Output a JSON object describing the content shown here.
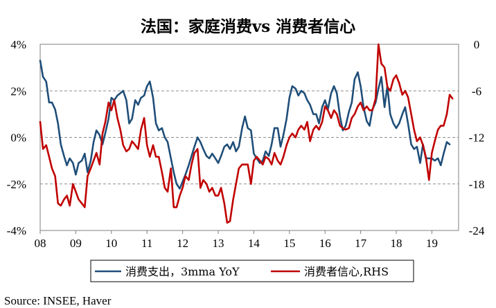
{
  "chart_data": {
    "type": "line",
    "title": "法国：家庭消费vs 消费者信心",
    "source": "Source: INSEE, Haver",
    "x_range": [
      2008.0,
      2019.75
    ],
    "x_ticks": [
      {
        "value": 2008,
        "label": "08"
      },
      {
        "value": 2009,
        "label": "09"
      },
      {
        "value": 2010,
        "label": "10"
      },
      {
        "value": 2011,
        "label": "11"
      },
      {
        "value": 2012,
        "label": "12"
      },
      {
        "value": 2013,
        "label": "13"
      },
      {
        "value": 2014,
        "label": "14"
      },
      {
        "value": 2015,
        "label": "15"
      },
      {
        "value": 2016,
        "label": "16"
      },
      {
        "value": 2017,
        "label": "17"
      },
      {
        "value": 2018,
        "label": "18"
      },
      {
        "value": 2019,
        "label": "19"
      }
    ],
    "y_left": {
      "range": [
        -4,
        4
      ],
      "ticks": [
        4,
        2,
        0,
        -2,
        -4
      ],
      "tick_labels": [
        "4%",
        "2%",
        "0%",
        "-2%",
        "-4%"
      ]
    },
    "y_right": {
      "range": [
        -24,
        0
      ],
      "ticks": [
        0,
        -6,
        -12,
        -18,
        -24
      ],
      "tick_labels": [
        "0",
        "-6",
        "-12",
        "-18",
        "-24"
      ]
    },
    "grid": "horizontal dashed",
    "legend_position": "bottom",
    "series": [
      {
        "name": "消费支出，3mma YoY",
        "axis": "left",
        "color": "#1f4e79",
        "points": [
          [
            2008.0,
            3.3
          ],
          [
            2008.08,
            2.6
          ],
          [
            2008.17,
            2.4
          ],
          [
            2008.25,
            1.5
          ],
          [
            2008.33,
            1.5
          ],
          [
            2008.42,
            1.2
          ],
          [
            2008.5,
            0.6
          ],
          [
            2008.58,
            -0.3
          ],
          [
            2008.67,
            -0.8
          ],
          [
            2008.75,
            -1.2
          ],
          [
            2008.83,
            -0.9
          ],
          [
            2008.92,
            -1.1
          ],
          [
            2009.0,
            -1.6
          ],
          [
            2009.08,
            -1.1
          ],
          [
            2009.17,
            -1.0
          ],
          [
            2009.25,
            -0.7
          ],
          [
            2009.33,
            -1.5
          ],
          [
            2009.42,
            -1.0
          ],
          [
            2009.5,
            -0.2
          ],
          [
            2009.58,
            0.3
          ],
          [
            2009.67,
            0.1
          ],
          [
            2009.75,
            -0.3
          ],
          [
            2009.83,
            0.2
          ],
          [
            2009.92,
            0.8
          ],
          [
            2010.0,
            1.7
          ],
          [
            2010.08,
            1.6
          ],
          [
            2010.17,
            1.8
          ],
          [
            2010.25,
            1.9
          ],
          [
            2010.33,
            2.0
          ],
          [
            2010.42,
            1.6
          ],
          [
            2010.5,
            0.6
          ],
          [
            2010.58,
            0.8
          ],
          [
            2010.67,
            1.6
          ],
          [
            2010.75,
            1.4
          ],
          [
            2010.83,
            1.7
          ],
          [
            2010.92,
            1.8
          ],
          [
            2011.0,
            2.2
          ],
          [
            2011.08,
            2.4
          ],
          [
            2011.17,
            1.7
          ],
          [
            2011.25,
            0.6
          ],
          [
            2011.33,
            0.3
          ],
          [
            2011.42,
            0.4
          ],
          [
            2011.5,
            0.0
          ],
          [
            2011.58,
            -0.2
          ],
          [
            2011.67,
            -0.9
          ],
          [
            2011.75,
            -1.5
          ],
          [
            2011.83,
            -2.0
          ],
          [
            2011.92,
            -2.2
          ],
          [
            2012.0,
            -1.9
          ],
          [
            2012.08,
            -1.6
          ],
          [
            2012.17,
            -1.2
          ],
          [
            2012.25,
            -0.8
          ],
          [
            2012.33,
            -0.4
          ],
          [
            2012.42,
            0.0
          ],
          [
            2012.5,
            -0.2
          ],
          [
            2012.58,
            -0.5
          ],
          [
            2012.67,
            -0.8
          ],
          [
            2012.75,
            -0.9
          ],
          [
            2012.83,
            -0.7
          ],
          [
            2012.92,
            -0.9
          ],
          [
            2013.0,
            -1.1
          ],
          [
            2013.08,
            -0.8
          ],
          [
            2013.17,
            -0.4
          ],
          [
            2013.25,
            -0.3
          ],
          [
            2013.33,
            -0.5
          ],
          [
            2013.42,
            -0.2
          ],
          [
            2013.5,
            -0.6
          ],
          [
            2013.58,
            -0.4
          ],
          [
            2013.67,
            0.4
          ],
          [
            2013.75,
            0.9
          ],
          [
            2013.83,
            0.4
          ],
          [
            2013.92,
            0.3
          ],
          [
            2014.0,
            -0.7
          ],
          [
            2014.08,
            -0.9
          ],
          [
            2014.17,
            -1.1
          ],
          [
            2014.25,
            -1.0
          ],
          [
            2014.33,
            -0.6
          ],
          [
            2014.42,
            -0.8
          ],
          [
            2014.5,
            -0.3
          ],
          [
            2014.58,
            0.4
          ],
          [
            2014.67,
            0.4
          ],
          [
            2014.75,
            -0.4
          ],
          [
            2014.83,
            0.1
          ],
          [
            2014.92,
            0.8
          ],
          [
            2015.0,
            1.7
          ],
          [
            2015.08,
            2.2
          ],
          [
            2015.17,
            2.1
          ],
          [
            2015.25,
            1.8
          ],
          [
            2015.33,
            2.0
          ],
          [
            2015.42,
            1.9
          ],
          [
            2015.5,
            1.6
          ],
          [
            2015.58,
            1.4
          ],
          [
            2015.67,
            1.0
          ],
          [
            2015.75,
            1.0
          ],
          [
            2015.83,
            0.6
          ],
          [
            2015.92,
            1.3
          ],
          [
            2016.0,
            1.6
          ],
          [
            2016.08,
            1.2
          ],
          [
            2016.17,
            1.9
          ],
          [
            2016.25,
            2.2
          ],
          [
            2016.33,
            1.9
          ],
          [
            2016.42,
            0.9
          ],
          [
            2016.5,
            0.3
          ],
          [
            2016.58,
            0.5
          ],
          [
            2016.67,
            1.1
          ],
          [
            2016.75,
            1.5
          ],
          [
            2016.83,
            2.5
          ],
          [
            2016.92,
            2.8
          ],
          [
            2017.0,
            2.2
          ],
          [
            2017.08,
            1.3
          ],
          [
            2017.17,
            0.7
          ],
          [
            2017.25,
            0.5
          ],
          [
            2017.33,
            1.2
          ],
          [
            2017.42,
            1.5
          ],
          [
            2017.5,
            2.1
          ],
          [
            2017.58,
            2.6
          ],
          [
            2017.67,
            1.3
          ],
          [
            2017.75,
            2.2
          ],
          [
            2017.83,
            1.0
          ],
          [
            2017.92,
            0.6
          ],
          [
            2018.0,
            0.4
          ],
          [
            2018.08,
            0.6
          ],
          [
            2018.17,
            1.0
          ],
          [
            2018.25,
            1.3
          ],
          [
            2018.33,
            0.6
          ],
          [
            2018.42,
            -0.3
          ],
          [
            2018.5,
            -0.5
          ],
          [
            2018.58,
            -0.4
          ],
          [
            2018.67,
            -1.1
          ],
          [
            2018.75,
            -0.3
          ],
          [
            2018.83,
            -0.9
          ],
          [
            2018.92,
            -0.9
          ],
          [
            2019.0,
            -0.9
          ],
          [
            2019.08,
            -1.0
          ],
          [
            2019.17,
            -0.9
          ],
          [
            2019.25,
            -1.2
          ],
          [
            2019.33,
            -0.7
          ],
          [
            2019.42,
            -0.2
          ],
          [
            2019.5,
            -0.3
          ]
        ]
      },
      {
        "name": "消费者信心,RHS",
        "axis": "right",
        "color": "#c00000",
        "points": [
          [
            2008.0,
            -10.0
          ],
          [
            2008.08,
            -13.5
          ],
          [
            2008.17,
            -13.0
          ],
          [
            2008.25,
            -14.5
          ],
          [
            2008.33,
            -16.0
          ],
          [
            2008.42,
            -17.0
          ],
          [
            2008.5,
            -20.5
          ],
          [
            2008.58,
            -20.8
          ],
          [
            2008.67,
            -20.0
          ],
          [
            2008.75,
            -19.5
          ],
          [
            2008.83,
            -20.8
          ],
          [
            2008.92,
            -18.0
          ],
          [
            2009.0,
            -19.0
          ],
          [
            2009.08,
            -20.0
          ],
          [
            2009.17,
            -20.5
          ],
          [
            2009.25,
            -21.0
          ],
          [
            2009.33,
            -17.0
          ],
          [
            2009.42,
            -16.0
          ],
          [
            2009.5,
            -15.0
          ],
          [
            2009.58,
            -14.0
          ],
          [
            2009.67,
            -15.5
          ],
          [
            2009.75,
            -11.5
          ],
          [
            2009.83,
            -10.0
          ],
          [
            2009.92,
            -7.5
          ],
          [
            2010.0,
            -8.5
          ],
          [
            2010.08,
            -7.2
          ],
          [
            2010.17,
            -9.5
          ],
          [
            2010.25,
            -11.0
          ],
          [
            2010.33,
            -13.0
          ],
          [
            2010.42,
            -13.8
          ],
          [
            2010.5,
            -13.5
          ],
          [
            2010.58,
            -12.5
          ],
          [
            2010.67,
            -13.0
          ],
          [
            2010.75,
            -13.5
          ],
          [
            2010.83,
            -11.0
          ],
          [
            2010.92,
            -9.5
          ],
          [
            2011.0,
            -13.0
          ],
          [
            2011.08,
            -14.5
          ],
          [
            2011.17,
            -13.0
          ],
          [
            2011.25,
            -14.5
          ],
          [
            2011.33,
            -14.5
          ],
          [
            2011.42,
            -16.5
          ],
          [
            2011.5,
            -18.5
          ],
          [
            2011.58,
            -19.0
          ],
          [
            2011.67,
            -16.0
          ],
          [
            2011.75,
            -21.0
          ],
          [
            2011.83,
            -21.0
          ],
          [
            2011.92,
            -19.5
          ],
          [
            2012.0,
            -18.5
          ],
          [
            2012.08,
            -17.0
          ],
          [
            2012.17,
            -17.5
          ],
          [
            2012.25,
            -15.5
          ],
          [
            2012.33,
            -14.0
          ],
          [
            2012.42,
            -13.5
          ],
          [
            2012.5,
            -18.5
          ],
          [
            2012.58,
            -17.5
          ],
          [
            2012.67,
            -18.0
          ],
          [
            2012.75,
            -19.0
          ],
          [
            2012.83,
            -18.5
          ],
          [
            2012.92,
            -19.5
          ],
          [
            2013.0,
            -19.5
          ],
          [
            2013.08,
            -18.5
          ],
          [
            2013.17,
            -20.5
          ],
          [
            2013.25,
            -23.0
          ],
          [
            2013.33,
            -22.8
          ],
          [
            2013.42,
            -20.0
          ],
          [
            2013.5,
            -18.0
          ],
          [
            2013.58,
            -16.0
          ],
          [
            2013.67,
            -15.5
          ],
          [
            2013.75,
            -15.5
          ],
          [
            2013.83,
            -15.5
          ],
          [
            2013.92,
            -18.0
          ],
          [
            2014.0,
            -15.0
          ],
          [
            2014.08,
            -14.5
          ],
          [
            2014.17,
            -15.0
          ],
          [
            2014.25,
            -15.5
          ],
          [
            2014.33,
            -14.5
          ],
          [
            2014.42,
            -14.8
          ],
          [
            2014.5,
            -15.5
          ],
          [
            2014.58,
            -14.0
          ],
          [
            2014.67,
            -15.0
          ],
          [
            2014.75,
            -15.5
          ],
          [
            2014.83,
            -14.5
          ],
          [
            2014.92,
            -13.0
          ],
          [
            2015.0,
            -12.0
          ],
          [
            2015.08,
            -11.5
          ],
          [
            2015.17,
            -12.0
          ],
          [
            2015.25,
            -11.0
          ],
          [
            2015.33,
            -10.5
          ],
          [
            2015.42,
            -11.0
          ],
          [
            2015.5,
            -10.0
          ],
          [
            2015.58,
            -12.5
          ],
          [
            2015.67,
            -11.0
          ],
          [
            2015.75,
            -10.5
          ],
          [
            2015.83,
            -11.0
          ],
          [
            2015.92,
            -10.0
          ],
          [
            2016.0,
            -8.0
          ],
          [
            2016.08,
            -8.5
          ],
          [
            2016.17,
            -9.5
          ],
          [
            2016.25,
            -8.5
          ],
          [
            2016.33,
            -9.0
          ],
          [
            2016.42,
            -10.5
          ],
          [
            2016.5,
            -10.8
          ],
          [
            2016.58,
            -11.0
          ],
          [
            2016.67,
            -10.8
          ],
          [
            2016.75,
            -9.5
          ],
          [
            2016.83,
            -9.0
          ],
          [
            2016.92,
            -8.0
          ],
          [
            2017.0,
            -7.5
          ],
          [
            2017.08,
            -8.5
          ],
          [
            2017.17,
            -8.0
          ],
          [
            2017.25,
            -8.5
          ],
          [
            2017.33,
            -8.5
          ],
          [
            2017.42,
            -7.0
          ],
          [
            2017.5,
            0.0
          ],
          [
            2017.58,
            -2.5
          ],
          [
            2017.67,
            -3.0
          ],
          [
            2017.75,
            -5.5
          ],
          [
            2017.83,
            -6.0
          ],
          [
            2017.92,
            -4.5
          ],
          [
            2018.0,
            -4.0
          ],
          [
            2018.08,
            -5.0
          ],
          [
            2018.17,
            -6.5
          ],
          [
            2018.25,
            -6.0
          ],
          [
            2018.33,
            -6.8
          ],
          [
            2018.42,
            -9.0
          ],
          [
            2018.5,
            -11.0
          ],
          [
            2018.58,
            -12.5
          ],
          [
            2018.67,
            -12.0
          ],
          [
            2018.75,
            -13.0
          ],
          [
            2018.83,
            -14.5
          ],
          [
            2018.92,
            -17.5
          ],
          [
            2019.0,
            -14.0
          ],
          [
            2019.08,
            -12.5
          ],
          [
            2019.17,
            -11.0
          ],
          [
            2019.25,
            -10.5
          ],
          [
            2019.33,
            -10.5
          ],
          [
            2019.42,
            -9.0
          ],
          [
            2019.5,
            -6.5
          ],
          [
            2019.58,
            -7.0
          ]
        ]
      }
    ]
  }
}
